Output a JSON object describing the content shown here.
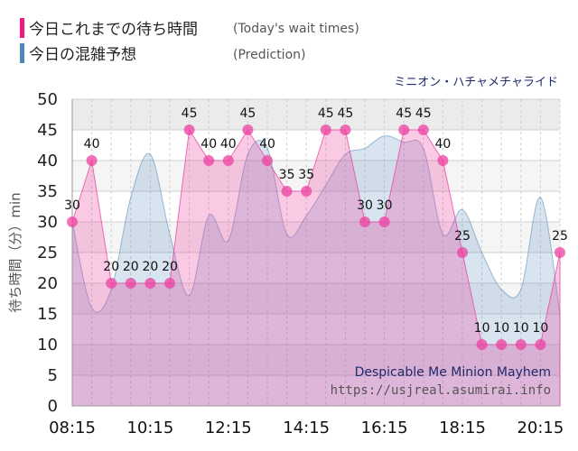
{
  "legend": {
    "today_label": "今日これまでの待ち時間",
    "today_note": "(Today's wait times)",
    "today_color": "#f0197e",
    "prediction_label": "今日の混雑予想",
    "prediction_note": "(Prediction)",
    "prediction_color": "#4f86b8"
  },
  "ride_name_jp": "ミニオン・ハチャメチャライド",
  "watermark": {
    "ride_name_en": "Despicable Me Minion Mayhem",
    "url": "https://usjreal.asumirai.info"
  },
  "chart_data": {
    "type": "area",
    "ylabel": "待ち時間（分）min",
    "ylim": [
      0,
      50
    ],
    "yticks": [
      0,
      5,
      10,
      15,
      20,
      25,
      30,
      35,
      40,
      45,
      50
    ],
    "xlim": [
      "08:15",
      "20:45"
    ],
    "xticks": [
      "08:15",
      "10:15",
      "12:15",
      "14:15",
      "16:15",
      "18:15",
      "20:15"
    ],
    "grid": true,
    "series": [
      {
        "role": "today",
        "x": [
          "08:15",
          "08:45",
          "09:15",
          "09:45",
          "10:15",
          "10:45",
          "11:15",
          "11:45",
          "12:15",
          "12:45",
          "13:15",
          "13:45",
          "14:15",
          "14:45",
          "15:15",
          "15:45",
          "16:15",
          "16:45",
          "17:15",
          "17:45",
          "18:15",
          "18:45",
          "19:15",
          "19:45",
          "20:15",
          "20:45"
        ],
        "values": [
          30,
          40,
          20,
          20,
          20,
          20,
          45,
          40,
          40,
          45,
          40,
          35,
          35,
          45,
          45,
          30,
          30,
          45,
          45,
          40,
          25,
          10,
          10,
          10,
          10,
          25
        ]
      },
      {
        "role": "prediction",
        "x": [
          "08:15",
          "08:45",
          "09:15",
          "09:45",
          "10:15",
          "10:45",
          "11:15",
          "11:45",
          "12:15",
          "12:45",
          "13:15",
          "13:45",
          "14:15",
          "14:45",
          "15:15",
          "15:45",
          "16:15",
          "16:45",
          "17:15",
          "17:45",
          "18:15",
          "18:45",
          "19:15",
          "19:45",
          "20:15",
          "20:45"
        ],
        "values": [
          30,
          16,
          19,
          34,
          41,
          28,
          18,
          31,
          27,
          41,
          42,
          28,
          31,
          36,
          41,
          42,
          44,
          43,
          42,
          28,
          32,
          25,
          19,
          19,
          34,
          15
        ]
      }
    ]
  }
}
